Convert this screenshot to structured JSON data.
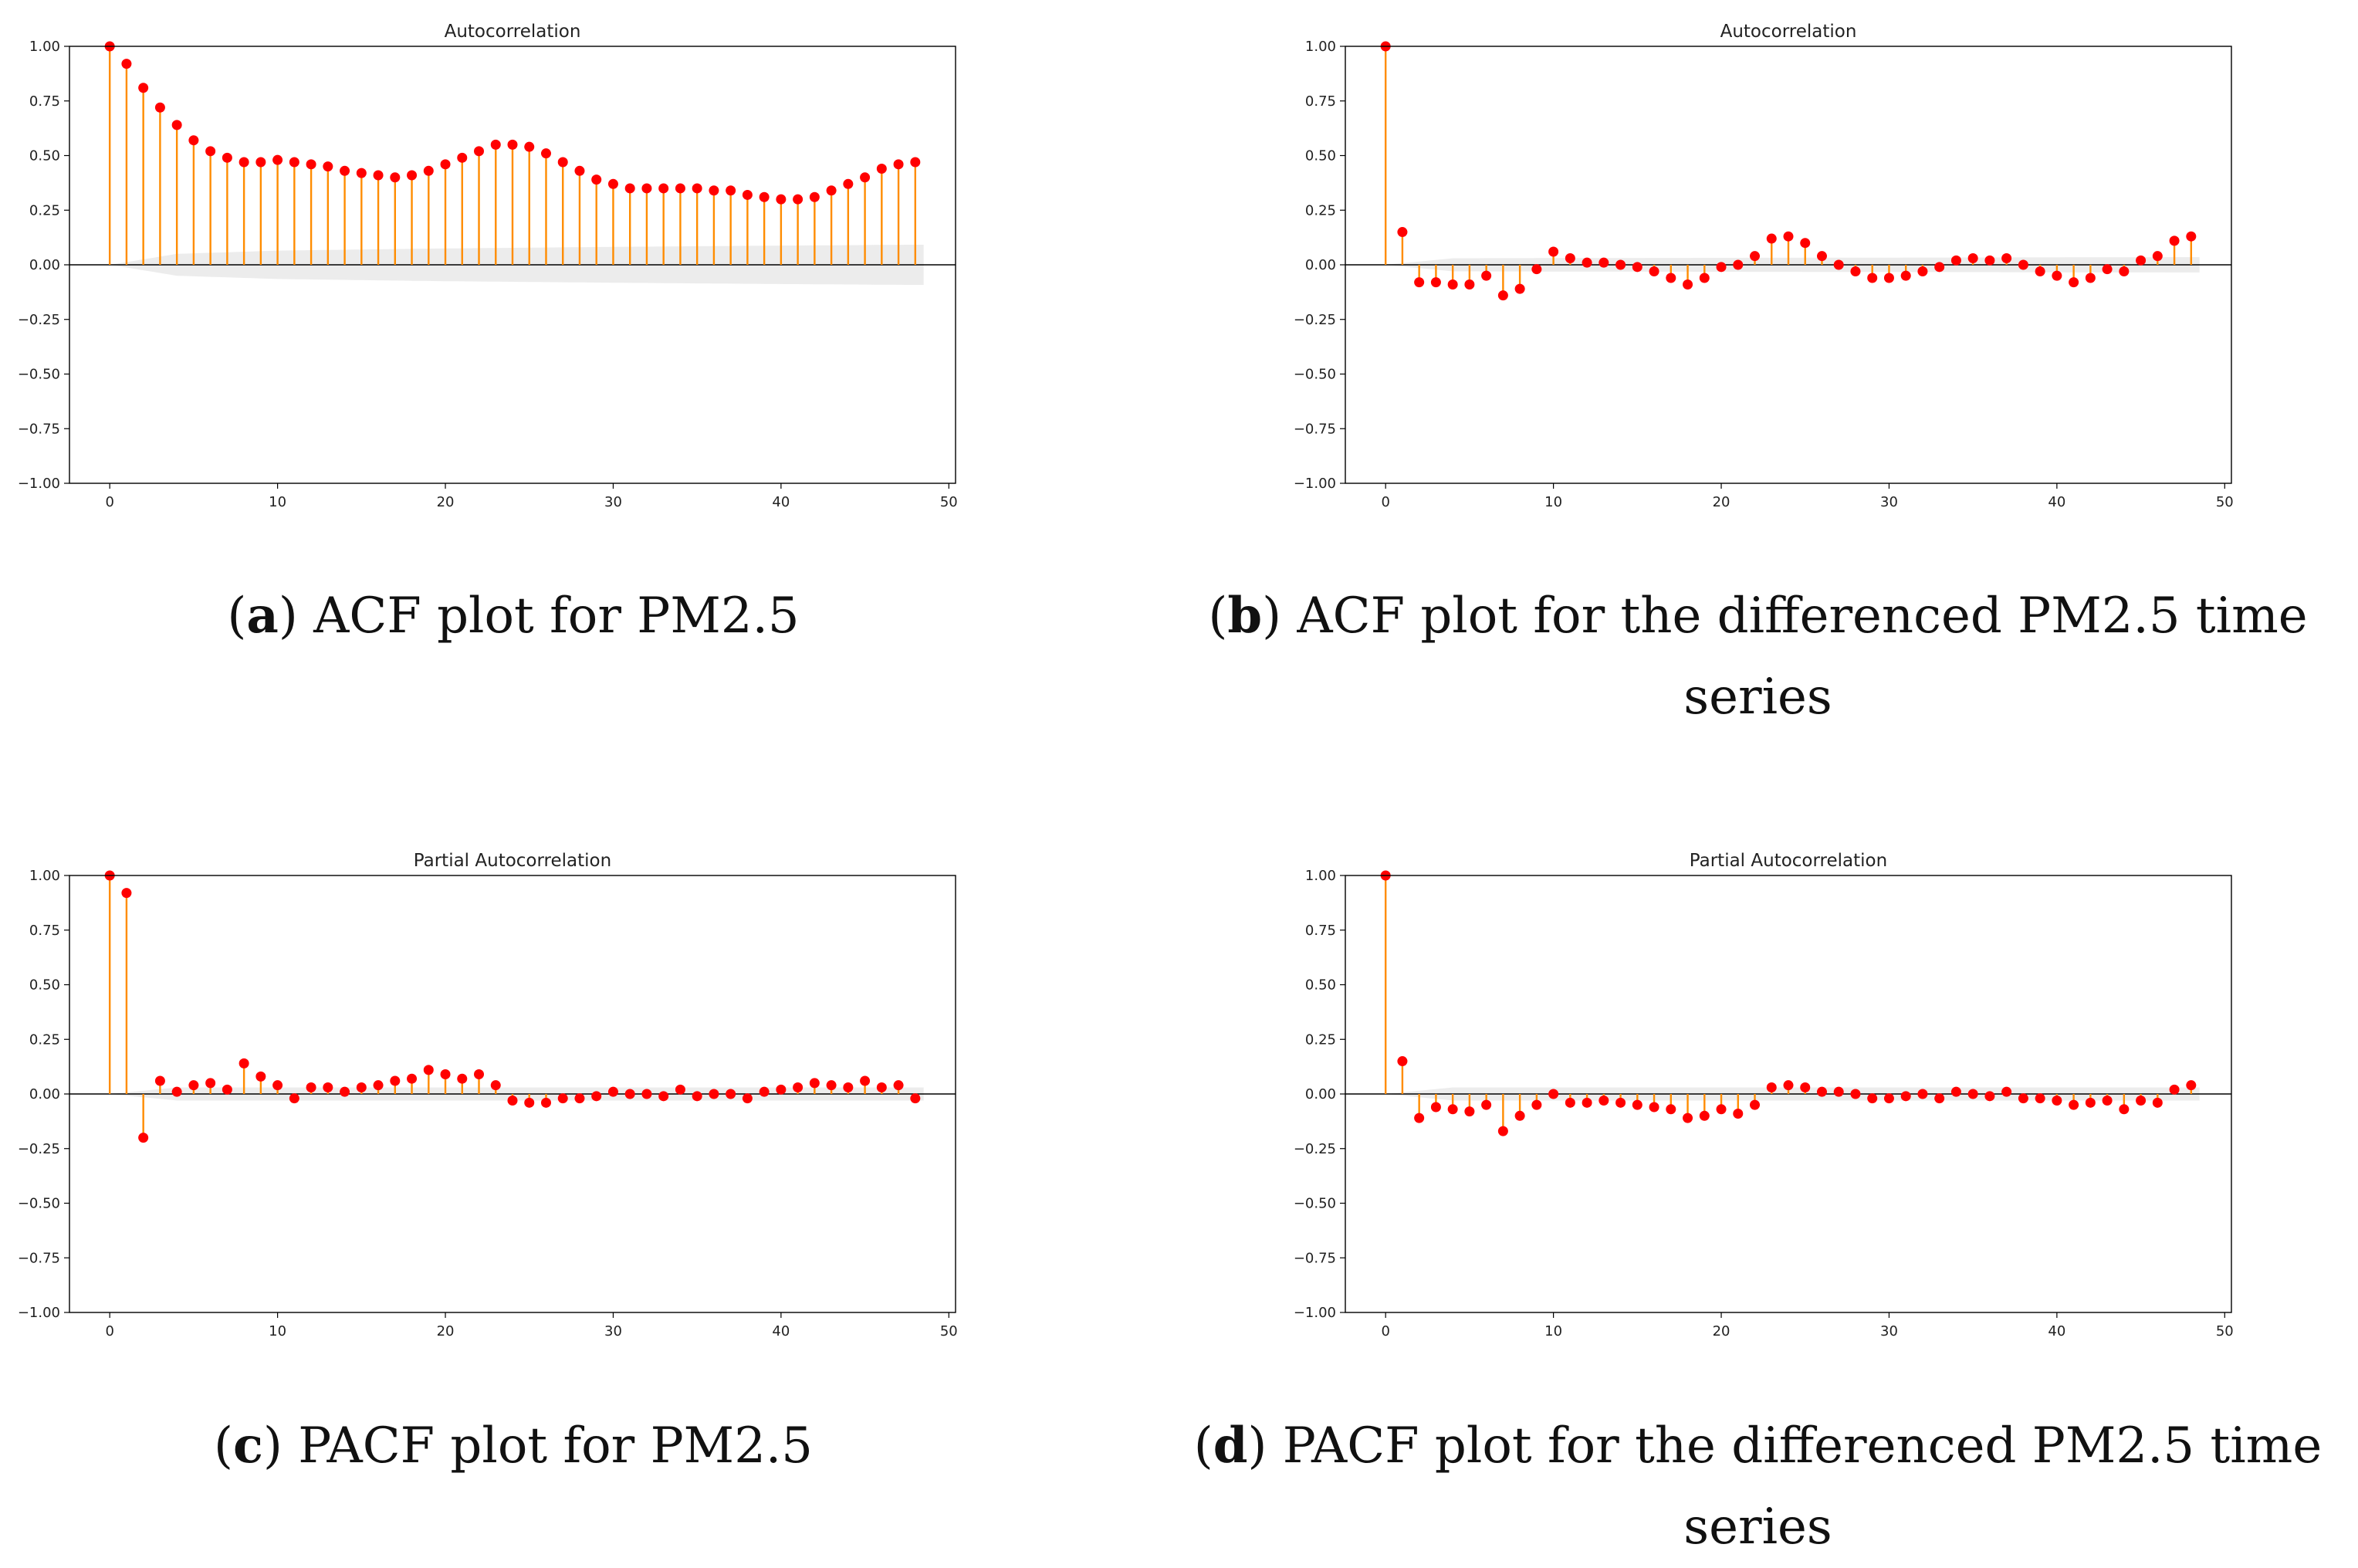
{
  "colors": {
    "stem": "#ff8c00",
    "marker": "#ff0000",
    "band": "#e6e6e6",
    "axis": "#000000"
  },
  "captions": {
    "a": {
      "letter": "a",
      "text": "ACF plot for PM2.5"
    },
    "b": {
      "letter": "b",
      "text": "ACF plot for the differenced PM2.5 time series"
    },
    "c": {
      "letter": "c",
      "text": "PACF plot for PM2.5"
    },
    "d": {
      "letter": "d",
      "text": "PACF plot for the differenced PM2.5 time series"
    }
  },
  "chart_data": [
    {
      "id": "a",
      "type": "stem",
      "title": "Autocorrelation",
      "xlim": [
        -2.4,
        50.4
      ],
      "ylim": [
        -1.0,
        1.0
      ],
      "xticks": [
        0,
        10,
        20,
        30,
        40,
        50
      ],
      "yticks": [
        1.0,
        0.75,
        0.5,
        0.25,
        0.0,
        -0.25,
        -0.5,
        -0.75,
        -1.0
      ],
      "ytick_labels": [
        "1.00",
        "0.75",
        "0.50",
        "0.25",
        "0.00",
        "−0.25",
        "−0.50",
        "−0.75",
        "−1.00"
      ],
      "lags": [
        0,
        1,
        2,
        3,
        4,
        5,
        6,
        7,
        8,
        9,
        10,
        11,
        12,
        13,
        14,
        15,
        16,
        17,
        18,
        19,
        20,
        21,
        22,
        23,
        24,
        25,
        26,
        27,
        28,
        29,
        30,
        31,
        32,
        33,
        34,
        35,
        36,
        37,
        38,
        39,
        40,
        41,
        42,
        43,
        44,
        45,
        46,
        47,
        48
      ],
      "values": [
        1.0,
        0.92,
        0.81,
        0.72,
        0.64,
        0.57,
        0.52,
        0.49,
        0.47,
        0.47,
        0.48,
        0.47,
        0.46,
        0.45,
        0.43,
        0.42,
        0.41,
        0.4,
        0.41,
        0.43,
        0.46,
        0.49,
        0.52,
        0.55,
        0.55,
        0.54,
        0.51,
        0.47,
        0.43,
        0.39,
        0.37,
        0.35,
        0.35,
        0.35,
        0.35,
        0.35,
        0.34,
        0.34,
        0.32,
        0.31,
        0.3,
        0.3,
        0.31,
        0.34,
        0.37,
        0.4,
        0.44,
        0.46,
        0.47
      ],
      "confidence_band": [
        [
          0,
          0.0
        ],
        [
          4,
          0.05
        ],
        [
          10,
          0.065
        ],
        [
          20,
          0.075
        ],
        [
          30,
          0.082
        ],
        [
          40,
          0.088
        ],
        [
          48,
          0.092
        ]
      ]
    },
    {
      "id": "b",
      "type": "stem",
      "title": "Autocorrelation",
      "xlim": [
        -2.4,
        50.4
      ],
      "ylim": [
        -1.0,
        1.0
      ],
      "xticks": [
        0,
        10,
        20,
        30,
        40,
        50
      ],
      "yticks": [
        1.0,
        0.75,
        0.5,
        0.25,
        0.0,
        -0.25,
        -0.5,
        -0.75,
        -1.0
      ],
      "ytick_labels": [
        "1.00",
        "0.75",
        "0.50",
        "0.25",
        "0.00",
        "−0.25",
        "−0.50",
        "−0.75",
        "−1.00"
      ],
      "lags": [
        0,
        1,
        2,
        3,
        4,
        5,
        6,
        7,
        8,
        9,
        10,
        11,
        12,
        13,
        14,
        15,
        16,
        17,
        18,
        19,
        20,
        21,
        22,
        23,
        24,
        25,
        26,
        27,
        28,
        29,
        30,
        31,
        32,
        33,
        34,
        35,
        36,
        37,
        38,
        39,
        40,
        41,
        42,
        43,
        44,
        45,
        46,
        47,
        48
      ],
      "values": [
        1.0,
        0.15,
        -0.08,
        -0.08,
        -0.09,
        -0.09,
        -0.05,
        -0.14,
        -0.11,
        -0.02,
        0.06,
        0.03,
        0.01,
        0.01,
        0.0,
        -0.01,
        -0.03,
        -0.06,
        -0.09,
        -0.06,
        -0.01,
        0.0,
        0.04,
        0.12,
        0.13,
        0.1,
        0.04,
        0.0,
        -0.03,
        -0.06,
        -0.06,
        -0.05,
        -0.03,
        -0.01,
        0.02,
        0.03,
        0.02,
        0.03,
        0.0,
        -0.03,
        -0.05,
        -0.08,
        -0.06,
        -0.02,
        -0.03,
        0.02,
        0.04,
        0.11,
        0.13
      ],
      "confidence_band": [
        [
          0,
          0.0
        ],
        [
          4,
          0.03
        ],
        [
          48,
          0.035
        ]
      ]
    },
    {
      "id": "c",
      "type": "stem",
      "title": "Partial Autocorrelation",
      "xlim": [
        -2.4,
        50.4
      ],
      "ylim": [
        -1.0,
        1.0
      ],
      "xticks": [
        0,
        10,
        20,
        30,
        40,
        50
      ],
      "yticks": [
        1.0,
        0.75,
        0.5,
        0.25,
        0.0,
        -0.25,
        -0.5,
        -0.75,
        -1.0
      ],
      "ytick_labels": [
        "1.00",
        "0.75",
        "0.50",
        "0.25",
        "0.00",
        "−0.25",
        "−0.50",
        "−0.75",
        "−1.00"
      ],
      "lags": [
        0,
        1,
        2,
        3,
        4,
        5,
        6,
        7,
        8,
        9,
        10,
        11,
        12,
        13,
        14,
        15,
        16,
        17,
        18,
        19,
        20,
        21,
        22,
        23,
        24,
        25,
        26,
        27,
        28,
        29,
        30,
        31,
        32,
        33,
        34,
        35,
        36,
        37,
        38,
        39,
        40,
        41,
        42,
        43,
        44,
        45,
        46,
        47,
        48
      ],
      "values": [
        1.0,
        0.92,
        -0.2,
        0.06,
        0.01,
        0.04,
        0.05,
        0.02,
        0.14,
        0.08,
        0.04,
        -0.02,
        0.03,
        0.03,
        0.01,
        0.03,
        0.04,
        0.06,
        0.07,
        0.11,
        0.09,
        0.07,
        0.09,
        0.04,
        -0.03,
        -0.04,
        -0.04,
        -0.02,
        -0.02,
        -0.01,
        0.01,
        0.0,
        0.0,
        -0.01,
        0.02,
        -0.01,
        0.0,
        0.0,
        -0.02,
        0.01,
        0.02,
        0.03,
        0.05,
        0.04,
        0.03,
        0.06,
        0.03,
        0.04,
        -0.02
      ],
      "confidence_band": [
        [
          0,
          0.0
        ],
        [
          4,
          0.03
        ],
        [
          48,
          0.03
        ]
      ]
    },
    {
      "id": "d",
      "type": "stem",
      "title": "Partial Autocorrelation",
      "xlim": [
        -2.4,
        50.4
      ],
      "ylim": [
        -1.0,
        1.0
      ],
      "xticks": [
        0,
        10,
        20,
        30,
        40,
        50
      ],
      "yticks": [
        1.0,
        0.75,
        0.5,
        0.25,
        0.0,
        -0.25,
        -0.5,
        -0.75,
        -1.0
      ],
      "ytick_labels": [
        "1.00",
        "0.75",
        "0.50",
        "0.25",
        "0.00",
        "−0.25",
        "−0.50",
        "−0.75",
        "−1.00"
      ],
      "lags": [
        0,
        1,
        2,
        3,
        4,
        5,
        6,
        7,
        8,
        9,
        10,
        11,
        12,
        13,
        14,
        15,
        16,
        17,
        18,
        19,
        20,
        21,
        22,
        23,
        24,
        25,
        26,
        27,
        28,
        29,
        30,
        31,
        32,
        33,
        34,
        35,
        36,
        37,
        38,
        39,
        40,
        41,
        42,
        43,
        44,
        45,
        46,
        47,
        48
      ],
      "values": [
        1.0,
        0.15,
        -0.11,
        -0.06,
        -0.07,
        -0.08,
        -0.05,
        -0.17,
        -0.1,
        -0.05,
        0.0,
        -0.04,
        -0.04,
        -0.03,
        -0.04,
        -0.05,
        -0.06,
        -0.07,
        -0.11,
        -0.1,
        -0.07,
        -0.09,
        -0.05,
        0.03,
        0.04,
        0.03,
        0.01,
        0.01,
        0.0,
        -0.02,
        -0.02,
        -0.01,
        0.0,
        -0.02,
        0.01,
        0.0,
        -0.01,
        0.01,
        -0.02,
        -0.02,
        -0.03,
        -0.05,
        -0.04,
        -0.03,
        -0.07,
        -0.03,
        -0.04,
        0.02,
        0.04
      ],
      "confidence_band": [
        [
          0,
          0.0
        ],
        [
          4,
          0.03
        ],
        [
          48,
          0.03
        ]
      ]
    }
  ]
}
